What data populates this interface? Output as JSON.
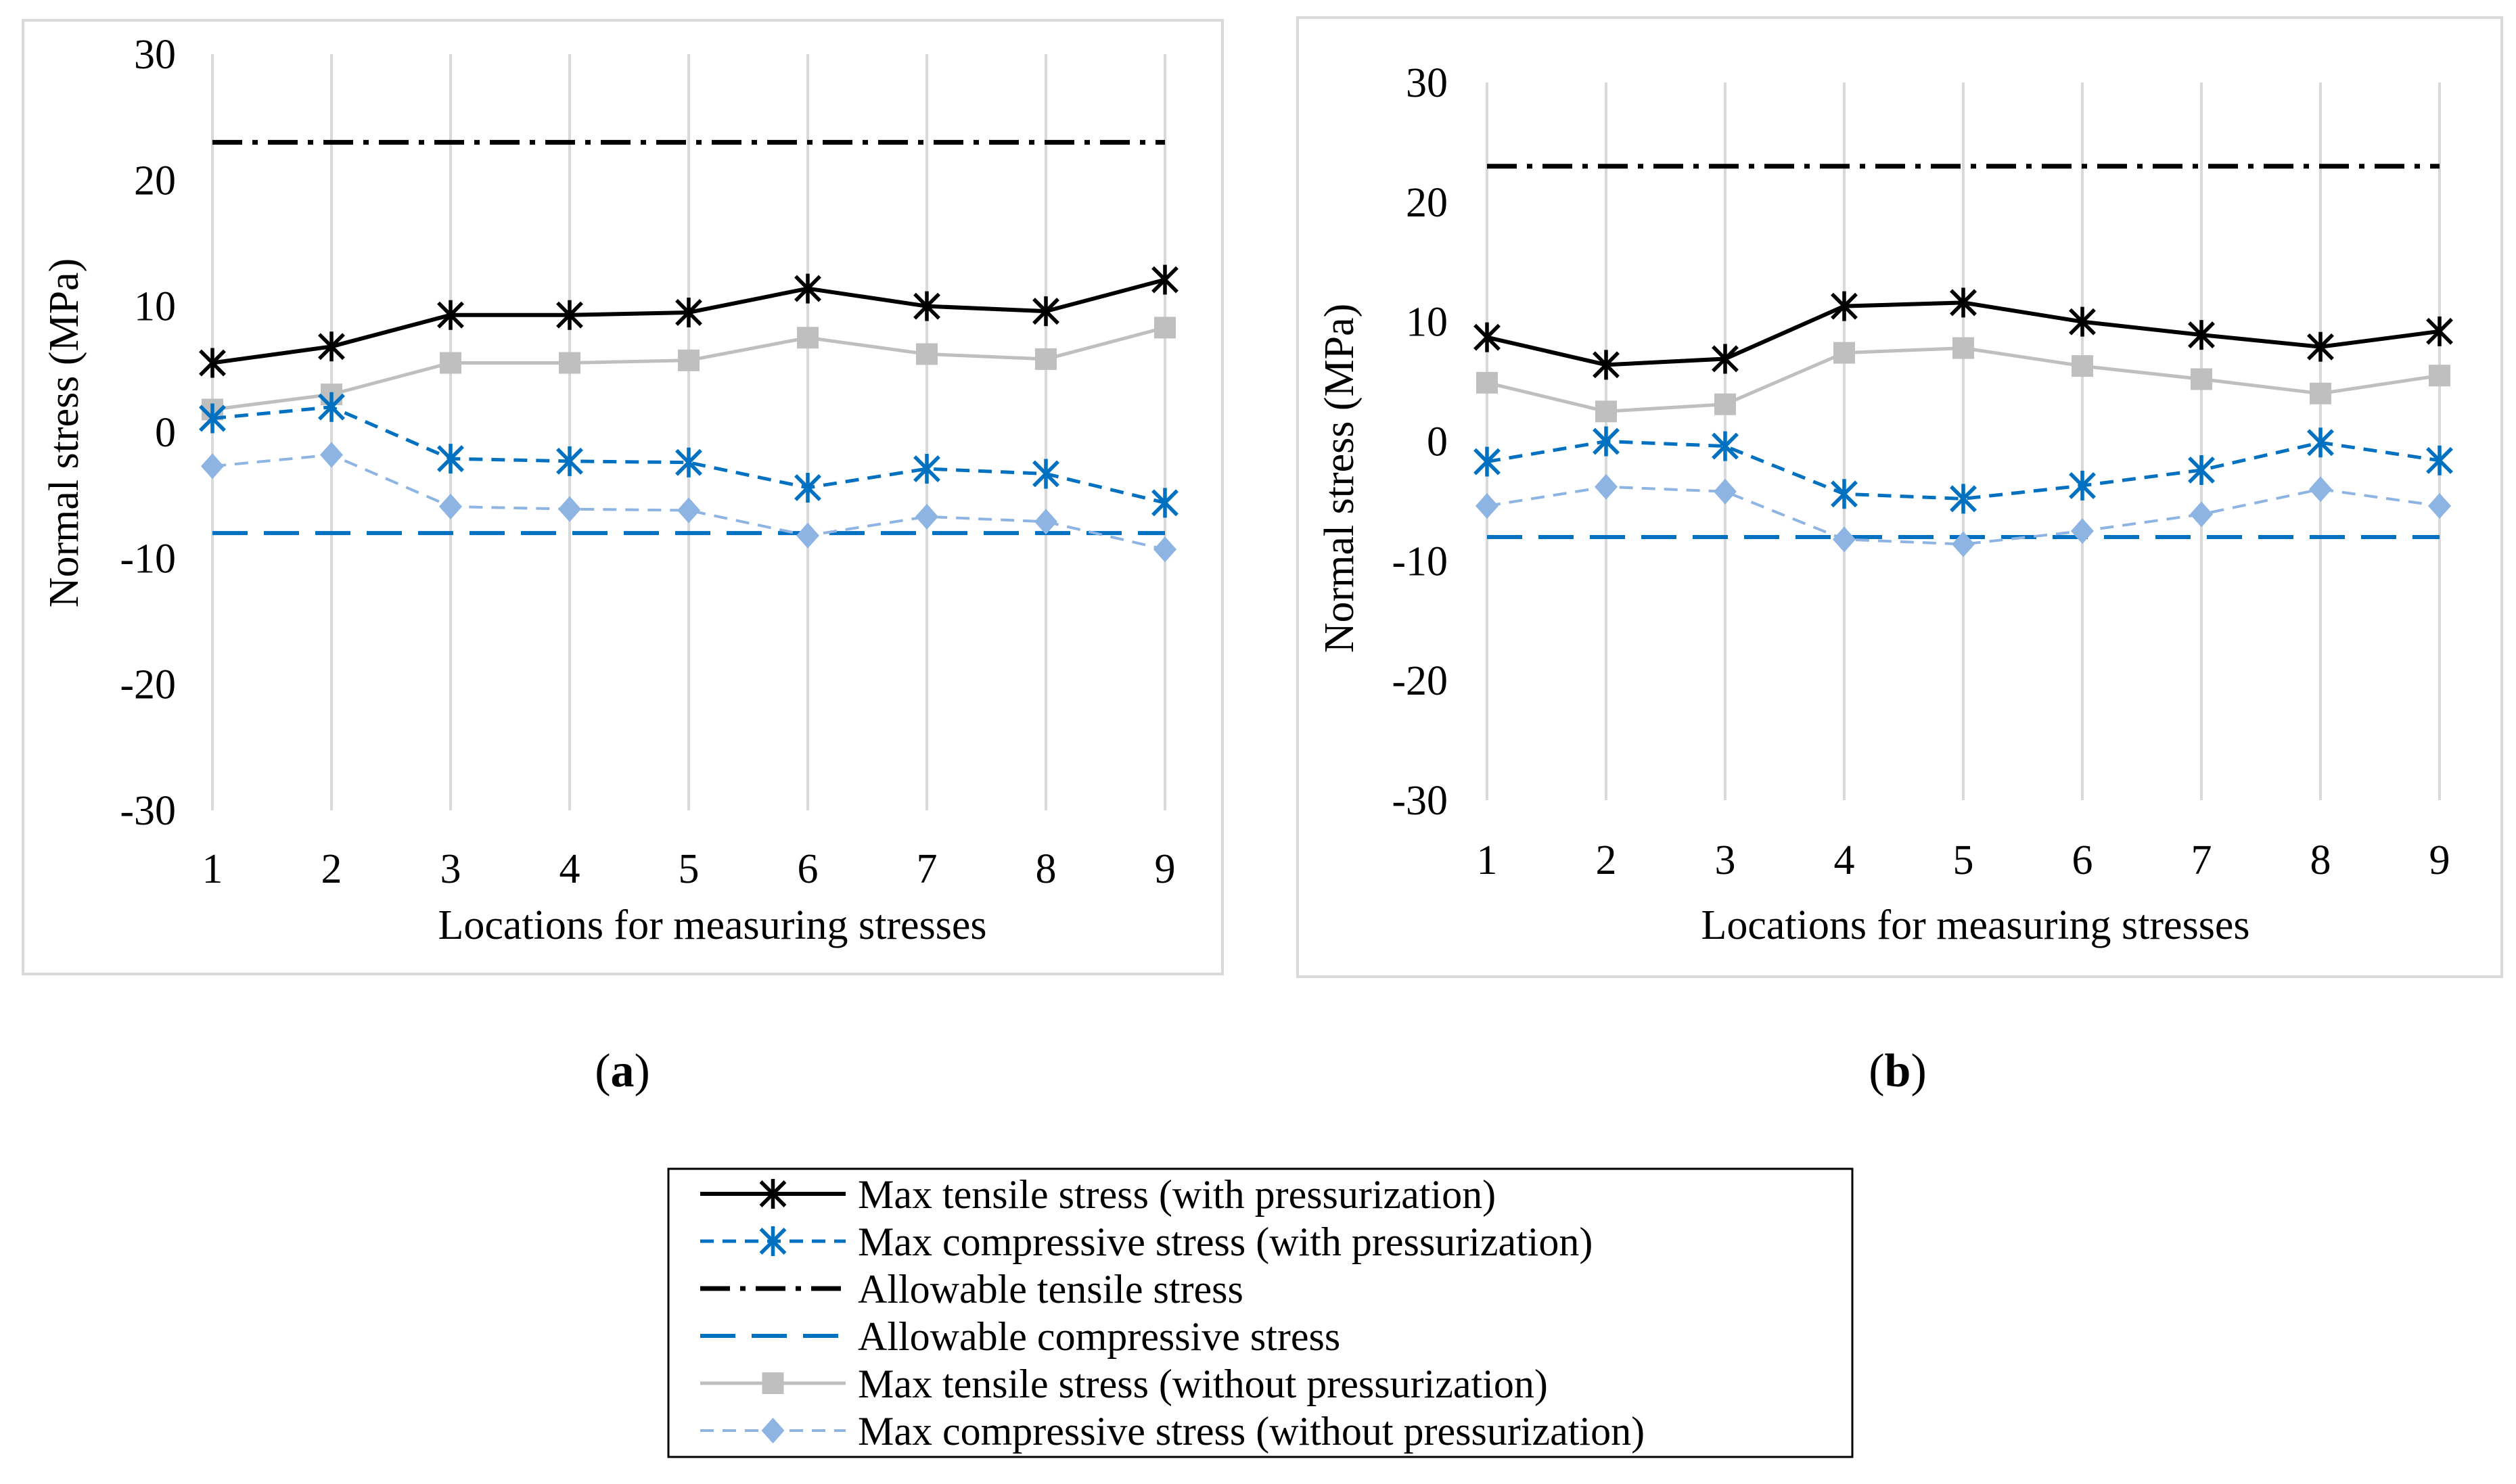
{
  "legend": {
    "entries": [
      {
        "key": "tensile_with",
        "label": "Max tensile stress (with pressurization)"
      },
      {
        "key": "compressive_with",
        "label": "Max compressive stress (with pressurization)"
      },
      {
        "key": "allow_tensile",
        "label": "Allowable tensile stress"
      },
      {
        "key": "allow_compressive",
        "label": "Allowable compressive stress"
      },
      {
        "key": "tensile_without",
        "label": "Max tensile stress (without pressurization)"
      },
      {
        "key": "compressive_without",
        "label": "Max compressive stress (without pressurization)"
      }
    ]
  },
  "styles": {
    "tensile_with": {
      "color": "#000000",
      "dash": "solid",
      "marker": "asterisk"
    },
    "compressive_with": {
      "color": "#0070C0",
      "dash": "dash",
      "marker": "asterisk"
    },
    "allow_tensile": {
      "color": "#000000",
      "dash": "dashdot",
      "marker": "none"
    },
    "allow_compressive": {
      "color": "#0070C0",
      "dash": "longdash",
      "marker": "none"
    },
    "tensile_without": {
      "color": "#BFBFBF",
      "dash": "solid",
      "marker": "square"
    },
    "compressive_without": {
      "color": "#8DB4E2",
      "dash": "dash",
      "marker": "diamond"
    }
  },
  "chart_data": [
    {
      "type": "line",
      "panel_label": "a",
      "xlabel": "Locations for measuring stresses",
      "ylabel": "Normal stress (MPa)",
      "categories": [
        "1",
        "2",
        "3",
        "4",
        "5",
        "6",
        "7",
        "8",
        "9"
      ],
      "ylim": [
        -30,
        30
      ],
      "yticks": [
        30,
        20,
        10,
        0,
        -10,
        -20,
        -30
      ],
      "grid": "vertical",
      "series": [
        {
          "key": "allow_tensile",
          "name": "Allowable tensile stress",
          "values": [
            23,
            23,
            23,
            23,
            23,
            23,
            23,
            23,
            23
          ]
        },
        {
          "key": "allow_compressive",
          "name": "Allowable compressive stress",
          "values": [
            -8,
            -8,
            -8,
            -8,
            -8,
            -8,
            -8,
            -8,
            -8
          ]
        },
        {
          "key": "tensile_without",
          "name": "Max tensile stress (without pressurization)",
          "values": [
            1.8,
            3.0,
            5.5,
            5.5,
            5.7,
            7.5,
            6.2,
            5.8,
            8.3
          ]
        },
        {
          "key": "compressive_without",
          "name": "Max compressive stress (without pressurization)",
          "values": [
            -2.7,
            -1.8,
            -5.9,
            -6.1,
            -6.2,
            -8.2,
            -6.7,
            -7.1,
            -9.3
          ]
        },
        {
          "key": "compressive_with",
          "name": "Max compressive stress (with pressurization)",
          "values": [
            1.1,
            2.0,
            -2.1,
            -2.3,
            -2.4,
            -4.4,
            -2.9,
            -3.3,
            -5.6
          ]
        },
        {
          "key": "tensile_with",
          "name": "Max tensile stress (with pressurization)",
          "values": [
            5.5,
            6.8,
            9.3,
            9.3,
            9.5,
            11.4,
            10.0,
            9.6,
            12.1
          ]
        }
      ]
    },
    {
      "type": "line",
      "panel_label": "b",
      "xlabel": "Locations for measuring stresses",
      "ylabel": "Normal stress (MPa)",
      "categories": [
        "1",
        "2",
        "3",
        "4",
        "5",
        "6",
        "7",
        "8",
        "9"
      ],
      "ylim": [
        -30,
        30
      ],
      "yticks": [
        30,
        20,
        10,
        0,
        -10,
        -20,
        -30
      ],
      "grid": "vertical",
      "series": [
        {
          "key": "allow_tensile",
          "name": "Allowable tensile stress",
          "values": [
            23,
            23,
            23,
            23,
            23,
            23,
            23,
            23,
            23
          ]
        },
        {
          "key": "allow_compressive",
          "name": "Allowable compressive stress",
          "values": [
            -8,
            -8,
            -8,
            -8,
            -8,
            -8,
            -8,
            -8,
            -8
          ]
        },
        {
          "key": "tensile_without",
          "name": "Max tensile stress (without pressurization)",
          "values": [
            4.9,
            2.5,
            3.1,
            7.4,
            7.8,
            6.3,
            5.2,
            4.0,
            5.5
          ]
        },
        {
          "key": "compressive_without",
          "name": "Max compressive stress (without pressurization)",
          "values": [
            -5.4,
            -3.8,
            -4.2,
            -8.2,
            -8.6,
            -7.5,
            -6.1,
            -4.0,
            -5.4
          ]
        },
        {
          "key": "compressive_with",
          "name": "Max compressive stress (with pressurization)",
          "values": [
            -1.7,
            0.0,
            -0.4,
            -4.4,
            -4.8,
            -3.7,
            -2.4,
            -0.1,
            -1.6
          ]
        },
        {
          "key": "tensile_with",
          "name": "Max tensile stress (with pressurization)",
          "values": [
            8.7,
            6.4,
            6.9,
            11.3,
            11.6,
            10.0,
            8.9,
            7.9,
            9.2
          ]
        }
      ]
    }
  ]
}
